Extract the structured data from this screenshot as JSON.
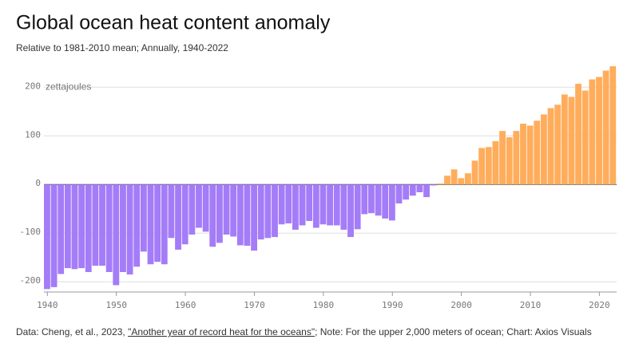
{
  "chart_data": {
    "type": "bar",
    "title": "Global ocean heat content anomaly",
    "subtitle": "Relative to 1981-2010 mean; Annually, 1940-2022",
    "y_unit": "zettajoules",
    "source_prefix": "Data: Cheng, et al., 2023, ",
    "source_link": "\"Another year of record heat for the oceans\"",
    "source_suffix": "; Note: For the upper 2,000 meters of ocean; Chart: Axios Visuals",
    "x": [
      1940,
      1941,
      1942,
      1943,
      1944,
      1945,
      1946,
      1947,
      1948,
      1949,
      1950,
      1951,
      1952,
      1953,
      1954,
      1955,
      1956,
      1957,
      1958,
      1959,
      1960,
      1961,
      1962,
      1963,
      1964,
      1965,
      1966,
      1967,
      1968,
      1969,
      1970,
      1971,
      1972,
      1973,
      1974,
      1975,
      1976,
      1977,
      1978,
      1979,
      1980,
      1981,
      1982,
      1983,
      1984,
      1985,
      1986,
      1987,
      1988,
      1989,
      1990,
      1991,
      1992,
      1993,
      1994,
      1995,
      1996,
      1997,
      1998,
      1999,
      2000,
      2001,
      2002,
      2003,
      2004,
      2005,
      2006,
      2007,
      2008,
      2009,
      2010,
      2011,
      2012,
      2013,
      2014,
      2015,
      2016,
      2017,
      2018,
      2019,
      2020,
      2021,
      2022
    ],
    "values": [
      -215,
      -211,
      -184,
      -172,
      -174,
      -172,
      -180,
      -167,
      -167,
      -180,
      -207,
      -180,
      -185,
      -169,
      -138,
      -164,
      -159,
      -164,
      -110,
      -134,
      -123,
      -103,
      -89,
      -97,
      -128,
      -120,
      -103,
      -107,
      -125,
      -126,
      -136,
      -113,
      -110,
      -108,
      -82,
      -80,
      -93,
      -84,
      -75,
      -89,
      -82,
      -84,
      -84,
      -93,
      -108,
      -92,
      -61,
      -59,
      -64,
      -70,
      -74,
      -39,
      -31,
      -23,
      -16,
      -26,
      -2,
      2,
      18,
      31,
      13,
      23,
      49,
      75,
      77,
      89,
      110,
      97,
      110,
      125,
      121,
      131,
      144,
      157,
      164,
      185,
      180,
      207,
      193,
      216,
      221,
      234,
      243
    ],
    "negative_color": "#a47cf8",
    "positive_color": "#ffad5c",
    "xlim": [
      1939.5,
      2022.5
    ],
    "xticks": [
      1940,
      1950,
      1960,
      1970,
      1980,
      1990,
      2000,
      2010,
      2020
    ],
    "ylim": [
      -221,
      248
    ],
    "yticks": [
      -200,
      -100,
      0,
      100,
      200
    ],
    "grid": true
  }
}
